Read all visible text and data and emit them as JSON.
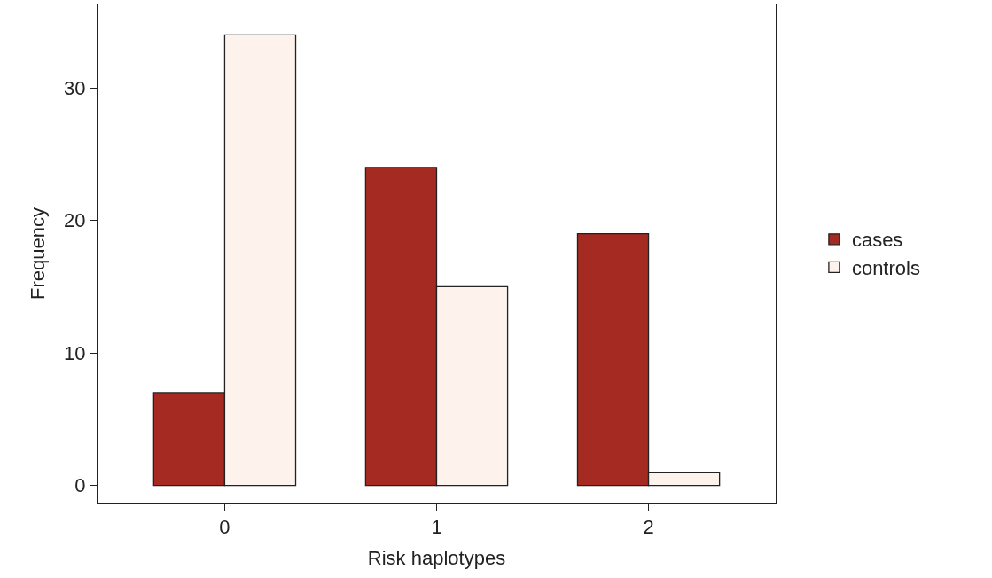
{
  "chart_data": {
    "type": "bar",
    "xlabel": "Risk haplotypes",
    "ylabel": "Frequency",
    "categories": [
      "0",
      "1",
      "2"
    ],
    "series": [
      {
        "name": "cases",
        "color": "#a52a21",
        "values": [
          7,
          24,
          19
        ]
      },
      {
        "name": "controls",
        "color": "#fdf3ec",
        "values": [
          34,
          15,
          1
        ]
      }
    ],
    "ylim": [
      -1.3,
      36.3
    ],
    "yticks": [
      0,
      10,
      20,
      30
    ],
    "legend": "right"
  }
}
